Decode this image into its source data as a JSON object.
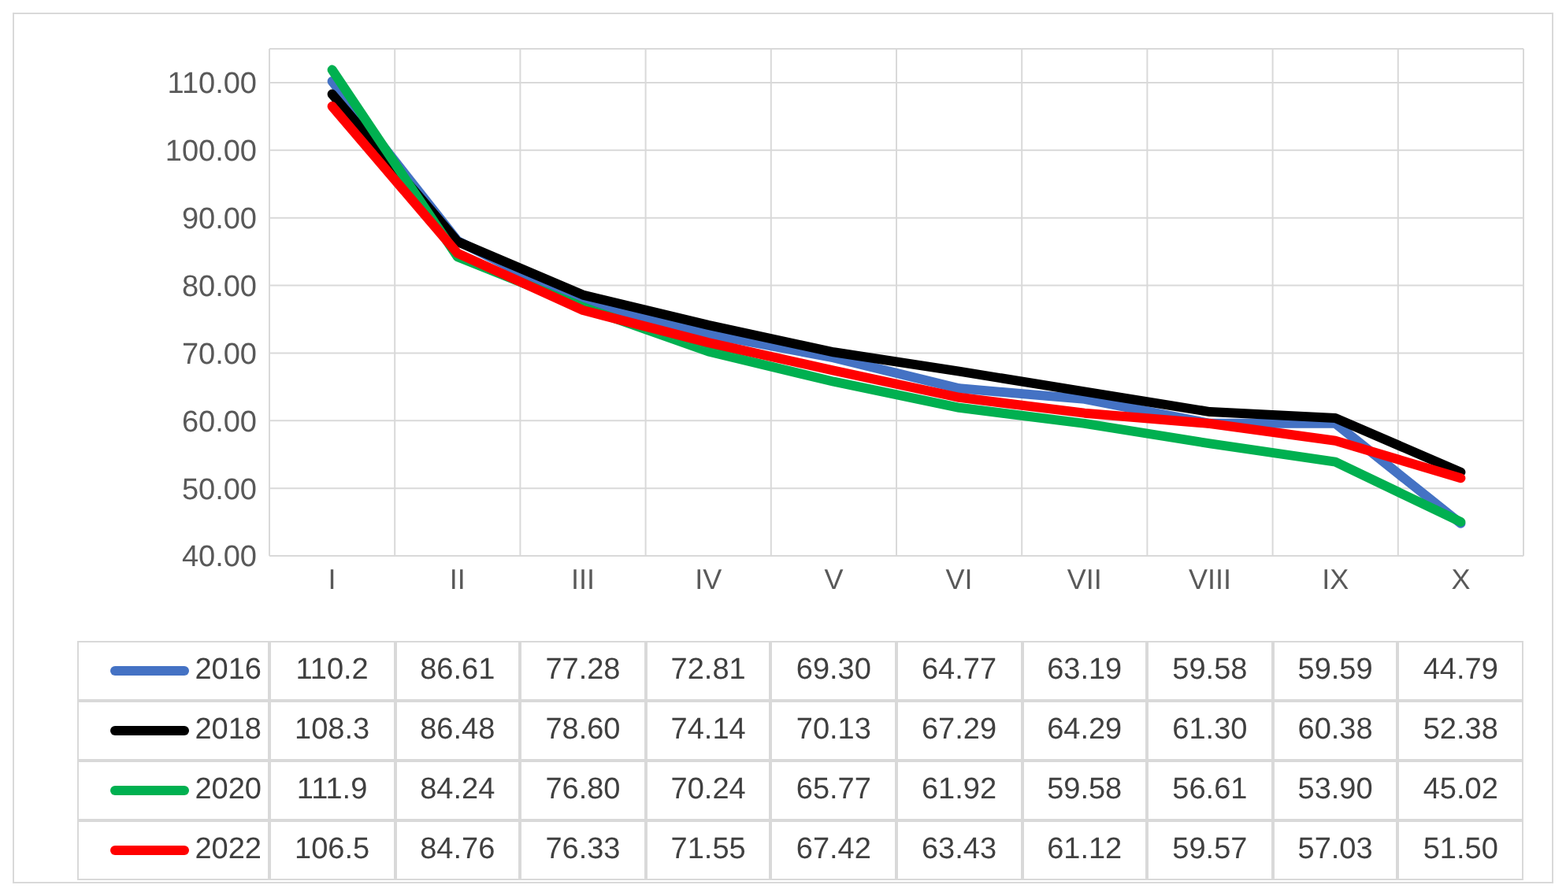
{
  "chart_data": {
    "type": "line",
    "categories": [
      "I",
      "II",
      "III",
      "IV",
      "V",
      "VI",
      "VII",
      "VIII",
      "IX",
      "X"
    ],
    "series": [
      {
        "name": "2016",
        "color": "#4472c4",
        "values": [
          110.2,
          86.61,
          77.28,
          72.81,
          69.3,
          64.77,
          63.19,
          59.58,
          59.59,
          44.79
        ],
        "value_labels": [
          "110.2",
          "86.61",
          "77.28",
          "72.81",
          "69.30",
          "64.77",
          "63.19",
          "59.58",
          "59.59",
          "44.79"
        ]
      },
      {
        "name": "2018",
        "color": "#000000",
        "values": [
          108.3,
          86.48,
          78.6,
          74.14,
          70.13,
          67.29,
          64.29,
          61.3,
          60.38,
          52.38
        ],
        "value_labels": [
          "108.3",
          "86.48",
          "78.60",
          "74.14",
          "70.13",
          "67.29",
          "64.29",
          "61.30",
          "60.38",
          "52.38"
        ]
      },
      {
        "name": "2020",
        "color": "#00b050",
        "values": [
          111.9,
          84.24,
          76.8,
          70.24,
          65.77,
          61.92,
          59.58,
          56.61,
          53.9,
          45.02
        ],
        "value_labels": [
          "111.9",
          "84.24",
          "76.80",
          "70.24",
          "65.77",
          "61.92",
          "59.58",
          "56.61",
          "53.90",
          "45.02"
        ]
      },
      {
        "name": "2022",
        "color": "#ff0000",
        "values": [
          106.5,
          84.76,
          76.33,
          71.55,
          67.42,
          63.43,
          61.12,
          59.57,
          57.03,
          51.5
        ],
        "value_labels": [
          "106.5",
          "84.76",
          "76.33",
          "71.55",
          "67.42",
          "63.43",
          "61.12",
          "59.57",
          "57.03",
          "51.50"
        ]
      }
    ],
    "ylim": [
      40,
      115
    ],
    "yticks": [
      {
        "value": 40,
        "label": "40.00"
      },
      {
        "value": 50,
        "label": "50.00"
      },
      {
        "value": 60,
        "label": "60.00"
      },
      {
        "value": 70,
        "label": "70.00"
      },
      {
        "value": 80,
        "label": "80.00"
      },
      {
        "value": 90,
        "label": "90.00"
      },
      {
        "value": 100,
        "label": "100.00"
      },
      {
        "value": 110,
        "label": "110.00"
      }
    ],
    "grid": true,
    "legend": "bottom",
    "data_labels": true,
    "marker": "none",
    "line_style": "solid"
  }
}
